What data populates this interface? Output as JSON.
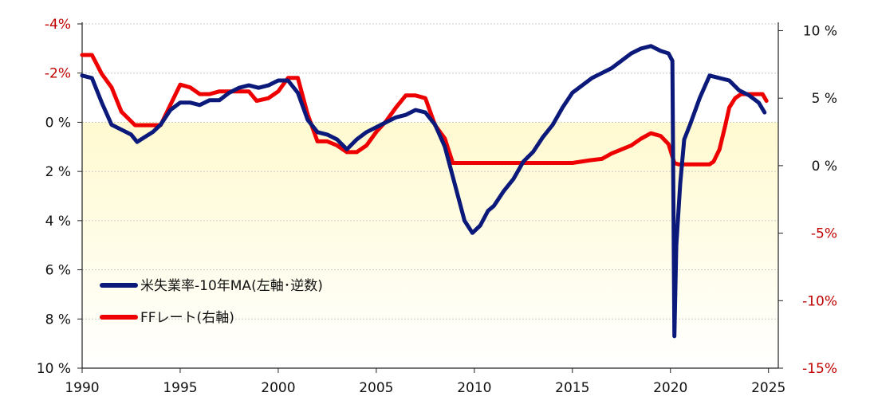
{
  "chart_data": {
    "type": "line",
    "title": "",
    "x_ticks": [
      "1990",
      "1995",
      "2000",
      "2005",
      "2010",
      "2015",
      "2020",
      "2025"
    ],
    "xlim": [
      1990,
      2025.5
    ],
    "left_axis": {
      "label": "",
      "inverted": true,
      "ylim": [
        -4,
        10
      ],
      "ticks": [
        {
          "value": -4,
          "label": "-4%",
          "color": "#c00000"
        },
        {
          "value": -2,
          "label": "-2%",
          "color": "#c00000"
        },
        {
          "value": 0,
          "label": "0 %",
          "color": "#111111"
        },
        {
          "value": 2,
          "label": "2 %",
          "color": "#111111"
        },
        {
          "value": 4,
          "label": "4 %",
          "color": "#111111"
        },
        {
          "value": 6,
          "label": "6 %",
          "color": "#111111"
        },
        {
          "value": 8,
          "label": "8 %",
          "color": "#111111"
        },
        {
          "value": 10,
          "label": "10 %",
          "color": "#111111"
        }
      ]
    },
    "right_axis": {
      "label": "",
      "ylim": [
        -15,
        10.5
      ],
      "ticks": [
        {
          "value": 10,
          "label": "10 %",
          "color": "#111111"
        },
        {
          "value": 5,
          "label": "5 %",
          "color": "#111111"
        },
        {
          "value": 0,
          "label": "0 %",
          "color": "#111111"
        },
        {
          "value": -5,
          "label": "-5%",
          "color": "#c00000"
        },
        {
          "value": -10,
          "label": "-10%",
          "color": "#c00000"
        },
        {
          "value": -15,
          "label": "-15%",
          "color": "#c00000"
        }
      ]
    },
    "background_band": {
      "from_left_value": 0,
      "to_left_value": 10,
      "top_color": "#fffad0",
      "bottom_color": "#ffffff"
    },
    "grid": "horizontal dotted",
    "legend_position": "lower-left",
    "series": [
      {
        "name": "米失業率-10年MA(左軸･逆数)",
        "axis": "left",
        "color": "#0b1a7a",
        "x": [
          1990.0,
          1990.5,
          1991.0,
          1991.5,
          1992.0,
          1992.5,
          1992.8,
          1993.2,
          1993.6,
          1994.0,
          1994.5,
          1995.0,
          1995.5,
          1996.0,
          1996.5,
          1997.0,
          1997.5,
          1998.0,
          1998.5,
          1999.0,
          1999.5,
          2000.0,
          2000.5,
          2001.0,
          2001.5,
          2002.0,
          2002.5,
          2003.0,
          2003.5,
          2004.0,
          2004.5,
          2005.0,
          2005.5,
          2006.0,
          2006.5,
          2007.0,
          2007.5,
          2008.0,
          2008.5,
          2009.0,
          2009.5,
          2009.9,
          2010.3,
          2010.7,
          2011.0,
          2011.5,
          2012.0,
          2012.5,
          2013.0,
          2013.5,
          2014.0,
          2014.5,
          2015.0,
          2015.5,
          2016.0,
          2016.5,
          2017.0,
          2017.5,
          2018.0,
          2018.5,
          2019.0,
          2019.5,
          2019.9,
          2020.1,
          2020.2,
          2020.3,
          2020.5,
          2020.7,
          2021.0,
          2021.5,
          2022.0,
          2022.5,
          2023.0,
          2023.5,
          2024.0,
          2024.5,
          2024.8
        ],
        "values": [
          -1.9,
          -1.8,
          -0.8,
          0.1,
          0.3,
          0.5,
          0.8,
          0.6,
          0.4,
          0.1,
          -0.5,
          -0.8,
          -0.8,
          -0.7,
          -0.9,
          -0.9,
          -1.2,
          -1.4,
          -1.5,
          -1.4,
          -1.5,
          -1.7,
          -1.7,
          -1.2,
          -0.1,
          0.4,
          0.5,
          0.7,
          1.1,
          0.7,
          0.4,
          0.2,
          0.0,
          -0.2,
          -0.3,
          -0.5,
          -0.4,
          0.1,
          1.0,
          2.5,
          4.0,
          4.5,
          4.2,
          3.6,
          3.4,
          2.8,
          2.3,
          1.6,
          1.2,
          0.6,
          0.1,
          -0.6,
          -1.2,
          -1.5,
          -1.8,
          -2.0,
          -2.2,
          -2.5,
          -2.8,
          -3.0,
          -3.1,
          -2.9,
          -2.8,
          -2.5,
          8.7,
          5.0,
          2.5,
          0.7,
          0.1,
          -1.0,
          -1.9,
          -1.8,
          -1.7,
          -1.3,
          -1.1,
          -0.8,
          -0.4
        ]
      },
      {
        "name": "FFレート(右軸)",
        "axis": "right",
        "color": "#ee0000",
        "x": [
          1990.0,
          1990.5,
          1991.0,
          1991.5,
          1992.0,
          1992.7,
          1993.0,
          1993.5,
          1994.0,
          1994.5,
          1995.0,
          1995.5,
          1996.0,
          1996.5,
          1997.0,
          1997.5,
          1998.0,
          1998.5,
          1998.9,
          1999.5,
          2000.0,
          2000.5,
          2001.0,
          2001.5,
          2002.0,
          2002.5,
          2003.0,
          2003.5,
          2004.0,
          2004.5,
          2005.0,
          2005.5,
          2006.0,
          2006.5,
          2007.0,
          2007.5,
          2008.0,
          2008.5,
          2008.9,
          2009.5,
          2010.0,
          2012.0,
          2014.0,
          2015.0,
          2015.9,
          2016.5,
          2017.0,
          2017.5,
          2018.0,
          2018.5,
          2019.0,
          2019.5,
          2019.9,
          2020.2,
          2020.4,
          2021.0,
          2021.5,
          2022.0,
          2022.2,
          2022.5,
          2022.8,
          2023.0,
          2023.3,
          2023.6,
          2024.0,
          2024.5,
          2024.7,
          2024.9
        ],
        "values": [
          8.2,
          8.2,
          6.8,
          5.8,
          4.0,
          3.0,
          3.0,
          3.0,
          3.0,
          4.5,
          6.0,
          5.8,
          5.3,
          5.3,
          5.5,
          5.5,
          5.5,
          5.5,
          4.8,
          5.0,
          5.5,
          6.5,
          6.5,
          3.8,
          1.8,
          1.8,
          1.5,
          1.0,
          1.0,
          1.5,
          2.5,
          3.3,
          4.3,
          5.2,
          5.2,
          5.0,
          3.0,
          2.0,
          0.2,
          0.2,
          0.2,
          0.2,
          0.2,
          0.2,
          0.4,
          0.5,
          0.9,
          1.2,
          1.5,
          2.0,
          2.4,
          2.2,
          1.6,
          0.2,
          0.1,
          0.1,
          0.1,
          0.1,
          0.3,
          1.2,
          3.0,
          4.3,
          5.0,
          5.3,
          5.3,
          5.3,
          5.3,
          4.8
        ]
      }
    ]
  }
}
